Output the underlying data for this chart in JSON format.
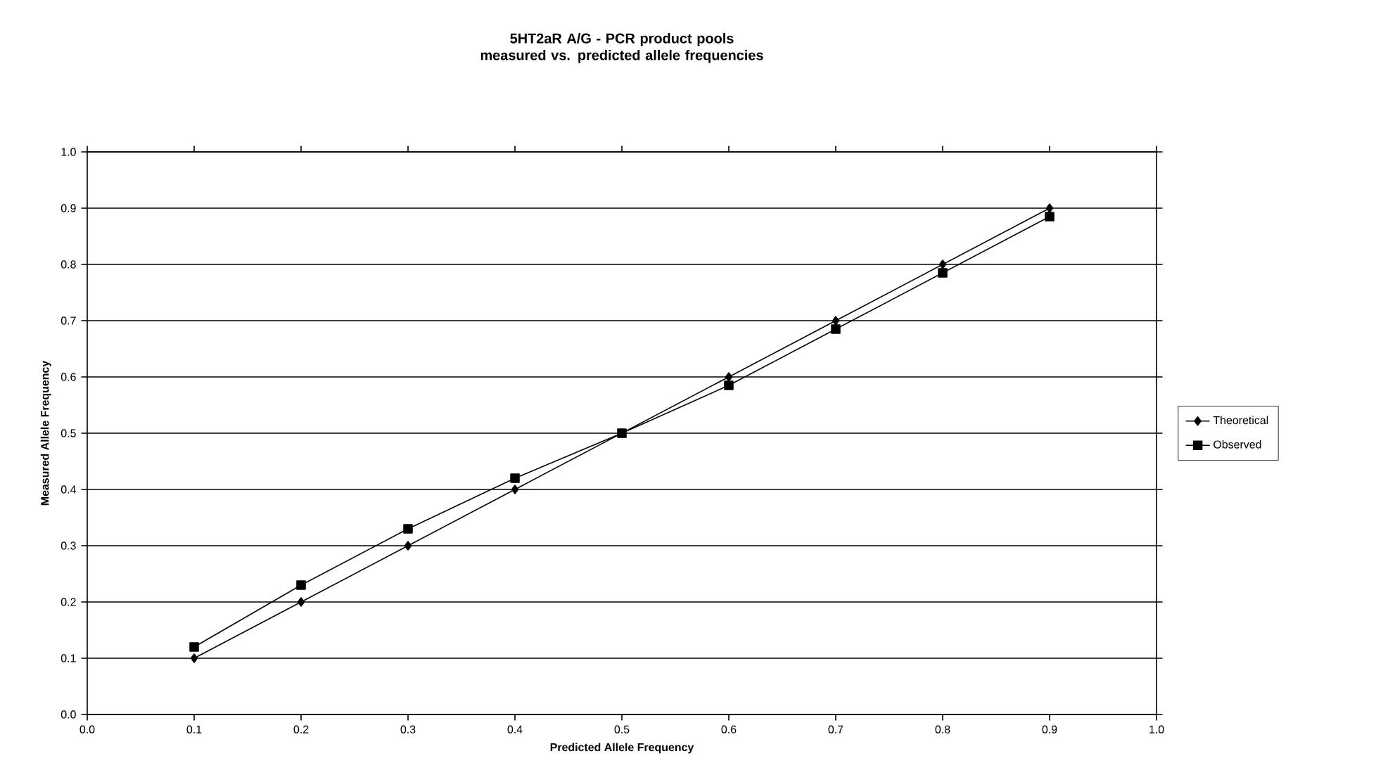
{
  "chart_data": {
    "type": "line",
    "title": "5HT2aR A/G - PCR product pools\nmeasured vs. predicted allele frequencies",
    "xlabel": "Predicted Allele Frequency",
    "ylabel": "Measured Allele Frequency",
    "x": [
      0.1,
      0.2,
      0.3,
      0.4,
      0.5,
      0.6,
      0.7,
      0.8,
      0.9
    ],
    "series": [
      {
        "name": "Theoretical",
        "color": "#000000",
        "marker": "diamond",
        "values": [
          0.1,
          0.2,
          0.3,
          0.4,
          0.5,
          0.6,
          0.7,
          0.8,
          0.9
        ]
      },
      {
        "name": "Observed",
        "color": "#000000",
        "marker": "square",
        "values": [
          0.12,
          0.23,
          0.33,
          0.42,
          0.5,
          0.585,
          0.685,
          0.785,
          0.885
        ]
      }
    ],
    "xlim": [
      0,
      1
    ],
    "ylim": [
      0,
      1
    ],
    "xticks": [
      {
        "value": 0,
        "label": "0.0"
      },
      0.1,
      0.2,
      0.3,
      0.4,
      0.5,
      0.6,
      0.7,
      0.8,
      0.9,
      {
        "value": 1,
        "label": "1.0"
      }
    ],
    "yticks": [
      {
        "value": 0,
        "label": "0.0"
      },
      0.1,
      0.2,
      0.3,
      0.4,
      0.5,
      0.6,
      0.7,
      0.8,
      0.9,
      {
        "value": 1,
        "label": "1.0"
      }
    ],
    "grid": "y",
    "legend": "right",
    "line_style": "solid"
  }
}
